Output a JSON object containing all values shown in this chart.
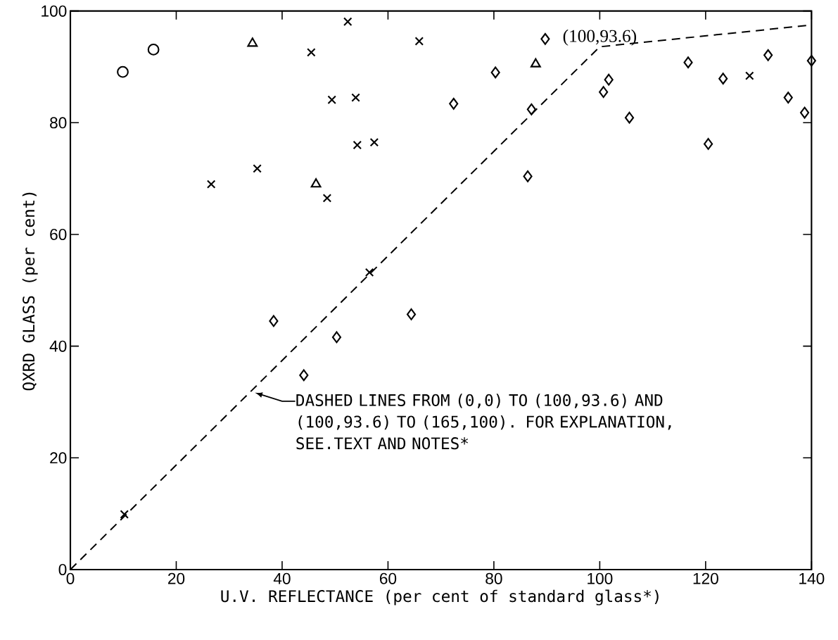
{
  "chart_data": {
    "type": "scatter",
    "xlabel": "U.V. REFLECTANCE (per cent of standard glass*)",
    "ylabel": "QXRD GLASS (per cent)",
    "xlim": [
      0,
      140
    ],
    "ylim": [
      0,
      100
    ],
    "xticks": [
      0,
      20,
      40,
      60,
      80,
      100,
      120,
      140
    ],
    "yticks": [
      0,
      20,
      40,
      60,
      80,
      100
    ],
    "series": [
      {
        "marker": "circle",
        "color": "#000000",
        "x": [
          9.9,
          15.7
        ],
        "values": [
          89.1,
          93.1
        ]
      },
      {
        "marker": "triangle",
        "color": "#000000",
        "x": [
          34.4,
          46.4,
          87.9
        ],
        "values": [
          94.2,
          69.0,
          90.5
        ]
      },
      {
        "marker": "cross",
        "color": "#000000",
        "x": [
          10.2,
          26.6,
          35.3,
          45.5,
          48.5,
          49.4,
          52.4,
          53.9,
          54.2,
          56.5,
          57.4,
          65.9,
          128.3
        ],
        "values": [
          9.9,
          69.0,
          71.8,
          92.6,
          66.5,
          84.1,
          98.1,
          84.5,
          76.0,
          53.2,
          76.5,
          94.6,
          88.4
        ]
      },
      {
        "marker": "diamond",
        "color": "#000000",
        "x": [
          38.4,
          44.1,
          50.3,
          64.4,
          72.4,
          80.3,
          86.4,
          87.1,
          89.7,
          100.7,
          101.7,
          105.6,
          116.7,
          120.5,
          123.3,
          131.8,
          135.6,
          138.7,
          140
        ],
        "values": [
          44.5,
          34.8,
          41.6,
          45.7,
          83.4,
          89.0,
          70.4,
          82.4,
          95.0,
          85.5,
          87.7,
          80.9,
          90.8,
          76.2,
          87.9,
          92.1,
          84.5,
          81.8,
          91.1
        ]
      },
      {
        "type": "line",
        "marker": "none",
        "line_style": "dashed",
        "color": "#000000",
        "x": [
          0,
          100,
          140
        ],
        "values": [
          0,
          93.6,
          97.5
        ]
      }
    ],
    "annotations": [
      {
        "text": "(100,93.6)",
        "x": 100,
        "y": 93.6
      },
      {
        "text": "DASHED LINES FROM (0,0) TO (100,93.6) AND (100,93.6) TO (165,100). FOR EXPLANATION, SEE.TEXT AND NOTES*",
        "x": 34.5,
        "y": 32
      }
    ]
  }
}
